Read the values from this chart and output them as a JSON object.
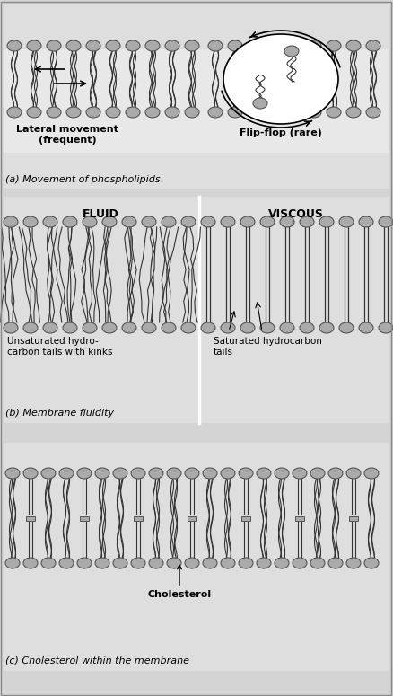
{
  "bg_color": "#d4d4d4",
  "panel_bg": "#e0e0e0",
  "lipid_head_color": "#aaaaaa",
  "lipid_head_edge": "#555555",
  "title_a": "(a) Movement of phospholipids",
  "title_b": "(b) Membrane fluidity",
  "title_c": "(c) Cholesterol within the membrane",
  "label_lateral": "Lateral movement\n(frequent)",
  "label_flipflop": "Flip-flop (rare)",
  "label_fluid": "FLUID",
  "label_viscous": "VISCOUS",
  "label_unsaturated": "Unsaturated hydro-\ncarbon tails with kinks",
  "label_saturated": "Saturated hydrocarbon\ntails",
  "label_cholesterol": "Cholesterol"
}
